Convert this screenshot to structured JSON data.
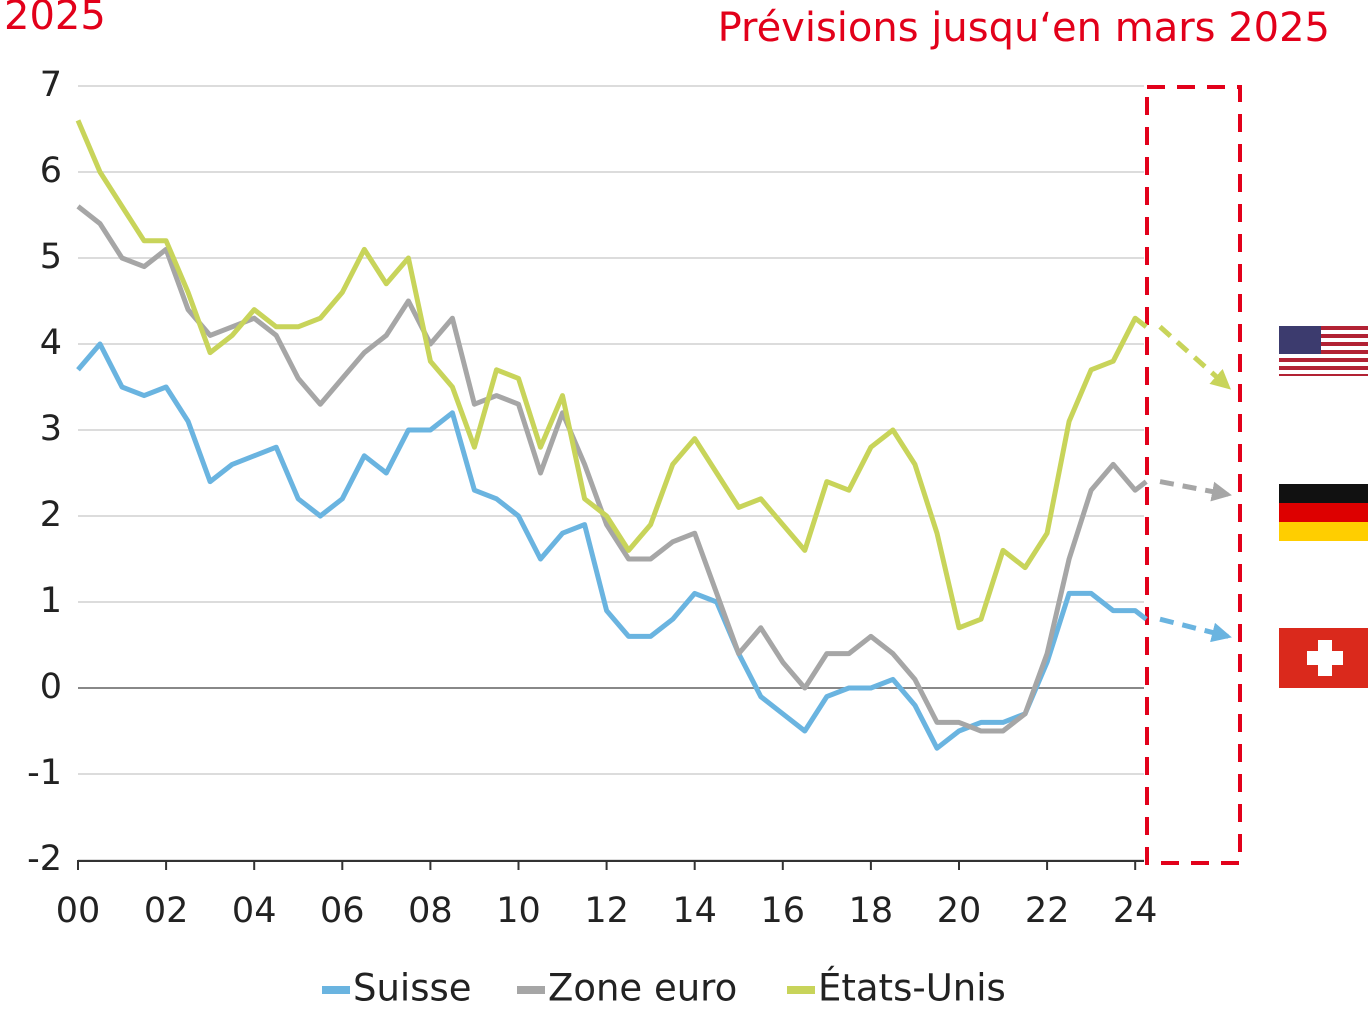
{
  "chart_data": {
    "type": "line",
    "title": "2025",
    "annotation": "Prévisions jusqu‘en mars 2025",
    "x": [
      0,
      0.5,
      1,
      1.5,
      2,
      2.5,
      3,
      3.5,
      4,
      4.5,
      5,
      5.5,
      6,
      6.5,
      7,
      7.5,
      8,
      8.5,
      9,
      9.5,
      10,
      10.5,
      11,
      11.5,
      12,
      12.5,
      13,
      13.5,
      14,
      14.5,
      15,
      15.5,
      16,
      16.5,
      17,
      17.5,
      18,
      18.5,
      19,
      19.5,
      20,
      20.5,
      21,
      21.5,
      22,
      22.5,
      23,
      23.5,
      24,
      24.25
    ],
    "series": [
      {
        "name": "Suisse",
        "color": "#6ab4e0",
        "forecast": 0.6,
        "values": [
          3.7,
          4.0,
          3.5,
          3.4,
          3.5,
          3.1,
          2.4,
          2.6,
          2.7,
          2.8,
          2.2,
          2.0,
          2.2,
          2.7,
          2.5,
          3.0,
          3.0,
          3.2,
          2.3,
          2.2,
          2.0,
          1.5,
          1.8,
          1.9,
          0.9,
          0.6,
          0.6,
          0.8,
          1.1,
          1.0,
          0.4,
          -0.1,
          -0.3,
          -0.5,
          -0.1,
          0.0,
          0.0,
          0.1,
          -0.2,
          -0.7,
          -0.5,
          -0.4,
          -0.4,
          -0.3,
          0.3,
          1.1,
          1.1,
          0.9,
          0.9,
          0.8
        ]
      },
      {
        "name": "Zone euro",
        "color": "#a6a6a6",
        "forecast": 2.25,
        "values": [
          5.6,
          5.4,
          5.0,
          4.9,
          5.1,
          4.4,
          4.1,
          4.2,
          4.3,
          4.1,
          3.6,
          3.3,
          3.6,
          3.9,
          4.1,
          4.5,
          4.0,
          4.3,
          3.3,
          3.4,
          3.3,
          2.5,
          3.2,
          2.6,
          1.9,
          1.5,
          1.5,
          1.7,
          1.8,
          1.1,
          0.4,
          0.7,
          0.3,
          0.0,
          0.4,
          0.4,
          0.6,
          0.4,
          0.1,
          -0.4,
          -0.4,
          -0.5,
          -0.5,
          -0.3,
          0.4,
          1.5,
          2.3,
          2.6,
          2.3,
          2.4
        ]
      },
      {
        "name": "États-Unis",
        "color": "#c8d45a",
        "forecast": 3.5,
        "values": [
          6.6,
          6.0,
          5.6,
          5.2,
          5.2,
          4.6,
          3.9,
          4.1,
          4.4,
          4.2,
          4.2,
          4.3,
          4.6,
          5.1,
          4.7,
          5.0,
          3.8,
          3.5,
          2.8,
          3.7,
          3.6,
          2.8,
          3.4,
          2.2,
          2.0,
          1.6,
          1.9,
          2.6,
          2.9,
          2.5,
          2.1,
          2.2,
          1.9,
          1.6,
          2.4,
          2.3,
          2.8,
          3.0,
          2.6,
          1.8,
          0.7,
          0.8,
          1.6,
          1.4,
          1.8,
          3.1,
          3.7,
          3.8,
          4.3,
          4.2
        ]
      }
    ],
    "xlim": [
      0,
      24.2
    ],
    "xticks": [
      {
        "value": 0,
        "label": "00"
      },
      {
        "value": 2,
        "label": "02"
      },
      {
        "value": 4,
        "label": "04"
      },
      {
        "value": 6,
        "label": "06"
      },
      {
        "value": 8,
        "label": "08"
      },
      10,
      12,
      14,
      16,
      18,
      20,
      22,
      24
    ],
    "ylim": [
      -2,
      7
    ],
    "yticks": [
      -2,
      -1,
      0,
      1,
      2,
      3,
      4,
      5,
      6,
      7
    ],
    "grid": true,
    "legend": "bottom"
  }
}
